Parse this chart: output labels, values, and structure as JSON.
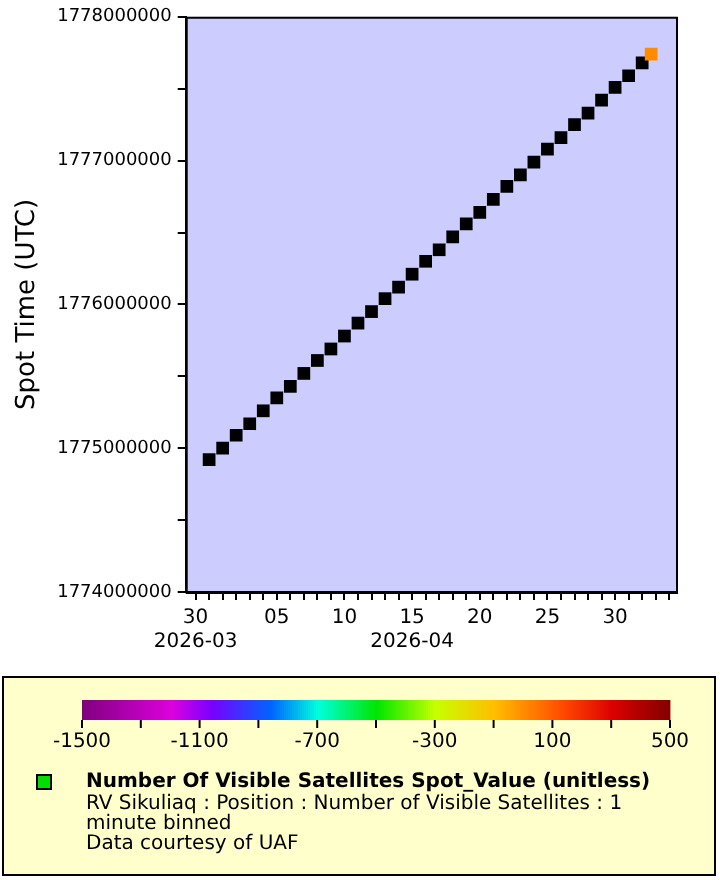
{
  "chart_data": {
    "type": "scatter",
    "ylabel": "Spot Time (UTC)",
    "xlim": [
      "2026-03-29T06:30",
      "2026-05-04T12:00"
    ],
    "xticks": [
      {
        "value": "2026-03-30",
        "label": "30\n2026-03"
      },
      {
        "value": "2026-03-31",
        "label": null
      },
      {
        "value": "2026-04-01",
        "label": null
      },
      {
        "value": "2026-04-02",
        "label": null
      },
      {
        "value": "2026-04-03",
        "label": null
      },
      {
        "value": "2026-04-04",
        "label": null
      },
      {
        "value": "2026-04-05",
        "label": "05"
      },
      {
        "value": "2026-04-06",
        "label": null
      },
      {
        "value": "2026-04-07",
        "label": null
      },
      {
        "value": "2026-04-08",
        "label": null
      },
      {
        "value": "2026-04-09",
        "label": null
      },
      {
        "value": "2026-04-10",
        "label": "10"
      },
      {
        "value": "2026-04-11",
        "label": null
      },
      {
        "value": "2026-04-12",
        "label": null
      },
      {
        "value": "2026-04-13",
        "label": null
      },
      {
        "value": "2026-04-14",
        "label": null
      },
      {
        "value": "2026-04-15",
        "label": "15\n2026-04"
      },
      {
        "value": "2026-04-16",
        "label": null
      },
      {
        "value": "2026-04-17",
        "label": null
      },
      {
        "value": "2026-04-18",
        "label": null
      },
      {
        "value": "2026-04-19",
        "label": null
      },
      {
        "value": "2026-04-20",
        "label": "20"
      },
      {
        "value": "2026-04-21",
        "label": null
      },
      {
        "value": "2026-04-22",
        "label": null
      },
      {
        "value": "2026-04-23",
        "label": null
      },
      {
        "value": "2026-04-24",
        "label": null
      },
      {
        "value": "2026-04-25",
        "label": "25"
      },
      {
        "value": "2026-04-26",
        "label": null
      },
      {
        "value": "2026-04-27",
        "label": null
      },
      {
        "value": "2026-04-28",
        "label": null
      },
      {
        "value": "2026-04-29",
        "label": null
      },
      {
        "value": "2026-04-30",
        "label": "30"
      },
      {
        "value": "2026-05-01",
        "label": null
      },
      {
        "value": "2026-05-02",
        "label": null
      },
      {
        "value": "2026-05-03",
        "label": null
      },
      {
        "value": "2026-05-04",
        "label": null
      }
    ],
    "ylim": [
      1774000000,
      1778000000
    ],
    "yticks": [
      1774000000,
      {
        "value": 1774500000,
        "label": null
      },
      1775000000,
      {
        "value": 1775500000,
        "label": null
      },
      1776000000,
      {
        "value": 1776500000,
        "label": null
      },
      1777000000,
      {
        "value": 1777500000,
        "label": null
      },
      1778000000
    ],
    "clim": [
      -1500,
      500
    ],
    "cticks": [
      -1500,
      {
        "value": -1300,
        "label": null
      },
      -1100,
      {
        "value": -900,
        "label": null
      },
      -700,
      {
        "value": -500,
        "label": null
      },
      -300,
      {
        "value": -100,
        "label": null
      },
      100,
      {
        "value": 300,
        "label": null
      },
      500
    ],
    "grid": false,
    "legend": "bottom",
    "marker": "square",
    "series": [
      {
        "name": "Number Of Visible Satellites Spot_Value (unitless)",
        "color": "#00dd00",
        "x": [
          "2026-03-31",
          "2026-04-01",
          "2026-04-02",
          "2026-04-03",
          "2026-04-04",
          "2026-04-05",
          "2026-04-06",
          "2026-04-07",
          "2026-04-08",
          "2026-04-09",
          "2026-04-10",
          "2026-04-11",
          "2026-04-12",
          "2026-04-13",
          "2026-04-14",
          "2026-04-15",
          "2026-04-16",
          "2026-04-17",
          "2026-04-18",
          "2026-04-19",
          "2026-04-20",
          "2026-04-21",
          "2026-04-22",
          "2026-04-23",
          "2026-04-24",
          "2026-04-25",
          "2026-04-26",
          "2026-04-27",
          "2026-04-28",
          "2026-04-29",
          "2026-04-30",
          "2026-05-01",
          "2026-05-02",
          "2026-05-02T16:00"
        ],
        "values": [
          1774920000,
          1775000000,
          1775090000,
          1775170000,
          1775260000,
          1775350000,
          1775430000,
          1775520000,
          1775610000,
          1775690000,
          1775780000,
          1775870000,
          1775950000,
          1776040000,
          1776120000,
          1776210000,
          1776300000,
          1776380000,
          1776470000,
          1776560000,
          1776640000,
          1776730000,
          1776820000,
          1776900000,
          1776990000,
          1777080000,
          1777160000,
          1777250000,
          1777330000,
          1777420000,
          1777510000,
          1777590000,
          1777680000,
          1777740000
        ],
        "colors": [
          "#000000",
          "#000000",
          "#000000",
          "#000000",
          "#000000",
          "#000000",
          "#000000",
          "#000000",
          "#000000",
          "#000000",
          "#000000",
          "#000000",
          "#000000",
          "#000000",
          "#000000",
          "#000000",
          "#000000",
          "#000000",
          "#000000",
          "#000000",
          "#000000",
          "#000000",
          "#000000",
          "#000000",
          "#000000",
          "#000000",
          "#000000",
          "#000000",
          "#000000",
          "#000000",
          "#000000",
          "#000000",
          "#000000",
          "#ff8c00"
        ]
      }
    ],
    "annotations": [
      "RV Sikuliaq : Position : Number of Visible Satellites : 1 minute binned",
      "Data courtesy of UAF"
    ]
  }
}
